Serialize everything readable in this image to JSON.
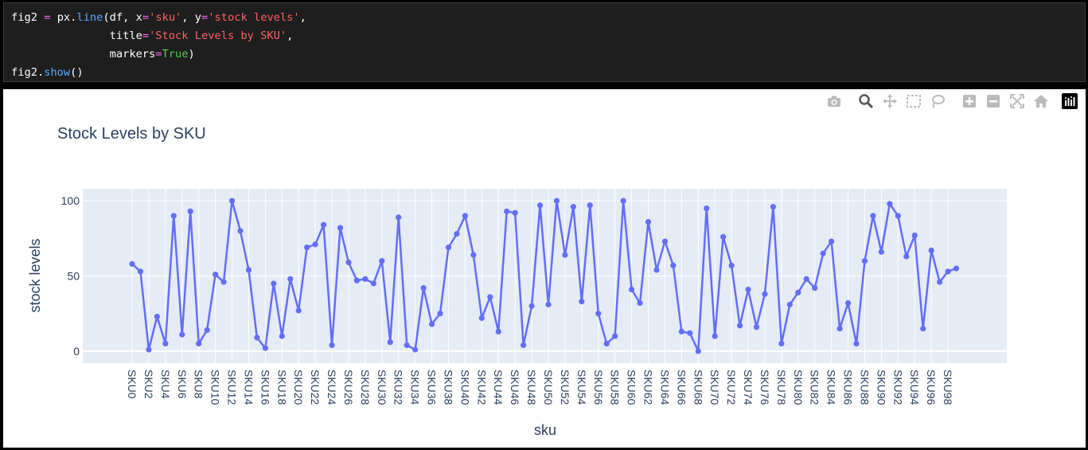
{
  "code": {
    "line1": {
      "a": "fig2 ",
      "eq": "=",
      "b": " px.",
      "fn": "line",
      "c": "(df, x",
      "eq2": "=",
      "s1": "'sku'",
      "d": ", y",
      "eq3": "=",
      "s2": "'stock levels'",
      "e": ","
    },
    "line2": {
      "indent": "               title",
      "eq": "=",
      "s": "'Stock Levels by SKU'",
      "e": ","
    },
    "line3": {
      "indent": "               markers",
      "eq": "=",
      "b": "True",
      "e": ")"
    },
    "line4": {
      "a": "fig2.",
      "fn": "show",
      "b": "()"
    }
  },
  "modebar": {
    "icons": [
      "camera-icon",
      "zoom-icon",
      "pan-icon",
      "box-select-icon",
      "lasso-select-icon",
      "zoom-in-icon",
      "zoom-out-icon",
      "autoscale-icon",
      "reset-axes-icon",
      "plotly-logo-icon"
    ]
  },
  "colors": {
    "line": "#636efa",
    "plot_bg": "#e5ecf6",
    "text": "#2a3f5f"
  },
  "chart_data": {
    "type": "line",
    "title": "Stock Levels by SKU",
    "xlabel": "sku",
    "ylabel": "stock levels",
    "ylim": [
      -8,
      108
    ],
    "yticks": [
      0,
      50,
      100
    ],
    "grid": true,
    "x": [
      "SKU0",
      "SKU1",
      "SKU2",
      "SKU3",
      "SKU4",
      "SKU5",
      "SKU6",
      "SKU7",
      "SKU8",
      "SKU9",
      "SKU10",
      "SKU11",
      "SKU12",
      "SKU13",
      "SKU14",
      "SKU15",
      "SKU16",
      "SKU17",
      "SKU18",
      "SKU19",
      "SKU20",
      "SKU21",
      "SKU22",
      "SKU23",
      "SKU24",
      "SKU25",
      "SKU26",
      "SKU27",
      "SKU28",
      "SKU29",
      "SKU30",
      "SKU31",
      "SKU32",
      "SKU33",
      "SKU34",
      "SKU35",
      "SKU36",
      "SKU37",
      "SKU38",
      "SKU39",
      "SKU40",
      "SKU41",
      "SKU42",
      "SKU43",
      "SKU44",
      "SKU45",
      "SKU46",
      "SKU47",
      "SKU48",
      "SKU49",
      "SKU50",
      "SKU51",
      "SKU52",
      "SKU53",
      "SKU54",
      "SKU55",
      "SKU56",
      "SKU57",
      "SKU58",
      "SKU59",
      "SKU60",
      "SKU61",
      "SKU62",
      "SKU63",
      "SKU64",
      "SKU65",
      "SKU66",
      "SKU67",
      "SKU68",
      "SKU69",
      "SKU70",
      "SKU71",
      "SKU72",
      "SKU73",
      "SKU74",
      "SKU75",
      "SKU76",
      "SKU77",
      "SKU78",
      "SKU79",
      "SKU80",
      "SKU81",
      "SKU82",
      "SKU83",
      "SKU84",
      "SKU85",
      "SKU86",
      "SKU87",
      "SKU88",
      "SKU89",
      "SKU90",
      "SKU91",
      "SKU92",
      "SKU93",
      "SKU94",
      "SKU95",
      "SKU96",
      "SKU97",
      "SKU98",
      "SKU99"
    ],
    "x_tick_labels": [
      "SKU0",
      "SKU2",
      "SKU4",
      "SKU6",
      "SKU8",
      "SKU10",
      "SKU12",
      "SKU14",
      "SKU16",
      "SKU18",
      "SKU20",
      "SKU22",
      "SKU24",
      "SKU26",
      "SKU28",
      "SKU30",
      "SKU32",
      "SKU34",
      "SKU36",
      "SKU38",
      "SKU40",
      "SKU42",
      "SKU44",
      "SKU46",
      "SKU48",
      "SKU50",
      "SKU52",
      "SKU54",
      "SKU56",
      "SKU58",
      "SKU60",
      "SKU62",
      "SKU64",
      "SKU66",
      "SKU68",
      "SKU70",
      "SKU72",
      "SKU74",
      "SKU76",
      "SKU78",
      "SKU80",
      "SKU82",
      "SKU84",
      "SKU86",
      "SKU88",
      "SKU90",
      "SKU92",
      "SKU94",
      "SKU96",
      "SKU98"
    ],
    "y": [
      58,
      53,
      1,
      23,
      5,
      90,
      11,
      93,
      5,
      14,
      51,
      46,
      100,
      80,
      54,
      9,
      2,
      45,
      10,
      48,
      27,
      69,
      71,
      84,
      4,
      82,
      59,
      47,
      48,
      45,
      60,
      6,
      89,
      4,
      1,
      42,
      18,
      25,
      69,
      78,
      90,
      64,
      22,
      36,
      13,
      93,
      92,
      4,
      30,
      97,
      31,
      100,
      64,
      96,
      33,
      97,
      25,
      5,
      10,
      100,
      41,
      32,
      86,
      54,
      73,
      57,
      13,
      12,
      0,
      95,
      10,
      76,
      57,
      17,
      41,
      16,
      38,
      96,
      5,
      31,
      39,
      48,
      42,
      65,
      73,
      15,
      32,
      5,
      60,
      90,
      66,
      98,
      90,
      63,
      77,
      15,
      67,
      46,
      53,
      55
    ]
  }
}
